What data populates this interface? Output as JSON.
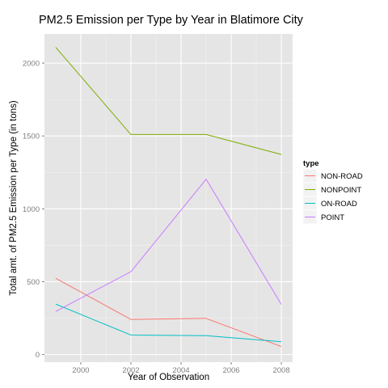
{
  "chart_data": {
    "type": "line",
    "title": "PM2.5 Emission per Type by Year in Blatimore City",
    "xlabel": "Year of Observation",
    "ylabel": "Total amt. of PM2.5 Emission per Type (in tons)",
    "x": [
      1999,
      2002,
      2005,
      2008
    ],
    "xlim": [
      1998.55,
      2008.45
    ],
    "ylim": [
      -52,
      2200
    ],
    "xticks": [
      2000,
      2002,
      2004,
      2006,
      2008
    ],
    "yticks": [
      0,
      500,
      1000,
      1500,
      2000
    ],
    "xtick_labels": [
      "2000",
      "2002",
      "2004",
      "2006",
      "2008"
    ],
    "ytick_labels": [
      "0",
      "500",
      "1000",
      "1500",
      "2000"
    ],
    "grid": true,
    "background": "#e5e5e5",
    "legend": {
      "title": "type",
      "placement": "right"
    },
    "series": [
      {
        "name": "NON-ROAD",
        "color": "#f8766d",
        "values": [
          523,
          241,
          248,
          55
        ]
      },
      {
        "name": "NONPOINT",
        "color": "#7cae00",
        "values": [
          2108,
          1510,
          1510,
          1373
        ]
      },
      {
        "name": "ON-ROAD",
        "color": "#00bfc4",
        "values": [
          346,
          134,
          130,
          88
        ]
      },
      {
        "name": "POINT",
        "color": "#c77cff",
        "values": [
          296,
          569,
          1203,
          344
        ]
      }
    ]
  }
}
